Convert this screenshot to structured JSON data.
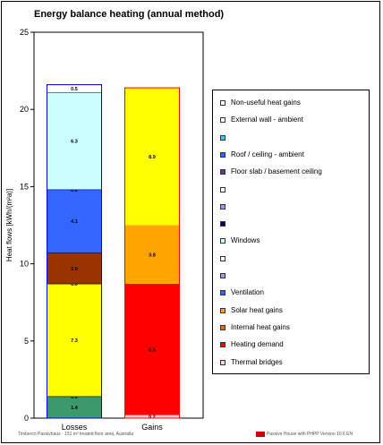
{
  "chart_data": {
    "type": "bar",
    "stacked": true,
    "title": "Energy balance heating (annual method)",
    "ylabel": "Heat flows [kWh/(m²a)]",
    "xlabel": "",
    "ylim": [
      0,
      25
    ],
    "yticks": [
      "0",
      "5",
      "10",
      "15",
      "20",
      "25"
    ],
    "categories": [
      "Losses",
      "Gains"
    ],
    "stacks": [
      {
        "category": "Losses",
        "segments": [
          {
            "value": 1.4,
            "label": "1.4",
            "color": "#3a9a6a"
          },
          {
            "value": 0.0,
            "label": "0.0",
            "color": "#808080"
          },
          {
            "value": 7.3,
            "label": "7.3",
            "color": "#ffff00"
          },
          {
            "value": 0.0,
            "label": "0.0",
            "color": "#808080"
          },
          {
            "value": 2.0,
            "label": "2.0",
            "color": "#993300"
          },
          {
            "value": 4.1,
            "label": "4.1",
            "color": "#3366ff"
          },
          {
            "value": 0.0,
            "label": "0.0",
            "color": "#3366ff"
          },
          {
            "value": 6.3,
            "label": "6.3",
            "color": "#ccffff"
          },
          {
            "value": 0.0,
            "label": "",
            "color": "#0000ff"
          },
          {
            "value": 0.5,
            "label": "0.5",
            "color": "#ffffff"
          }
        ]
      },
      {
        "category": "Gains",
        "segments": [
          {
            "value": 0.2,
            "label": "0.2",
            "color": "#ffcccc"
          },
          {
            "value": 8.5,
            "label": "8.5",
            "color": "#ff0000"
          },
          {
            "value": 3.8,
            "label": "3.8",
            "color": "#ffa500"
          },
          {
            "value": 8.9,
            "label": "8.9",
            "color": "#ffff00"
          }
        ]
      }
    ],
    "legend_position": "right",
    "legend": [
      {
        "label": "Non-useful heat gains",
        "color": "#ffffff"
      },
      {
        "label": "External wall - ambient",
        "color": "#ffffff"
      },
      {
        "label": "",
        "color": "#33ccff"
      },
      {
        "label": "Roof / ceiling - ambient",
        "color": "#3366ff"
      },
      {
        "label": "Floor slab / basement ceiling",
        "color": "#663399"
      },
      {
        "label": "",
        "color": "#ffffff"
      },
      {
        "label": "",
        "color": "#9999ff"
      },
      {
        "label": "",
        "color": "#000066"
      },
      {
        "label": "Windows",
        "color": "#ccffff"
      },
      {
        "label": "",
        "color": "#ffffff"
      },
      {
        "label": "",
        "color": "#9999ff"
      },
      {
        "label": "Ventilation",
        "color": "#3366ff"
      },
      {
        "label": "Solar heat gains",
        "color": "#ffa500"
      },
      {
        "label": "Internal heat gains",
        "color": "#ff6600"
      },
      {
        "label": "Heating demand",
        "color": "#ff0000"
      },
      {
        "label": "Thermal bridges",
        "color": "#ffcccc"
      }
    ]
  },
  "footer": {
    "left": "Timberco Passivhaus · 151 m² treated floor area, Australia",
    "right": "Passive House with PHPP Version 10.6 EN"
  }
}
